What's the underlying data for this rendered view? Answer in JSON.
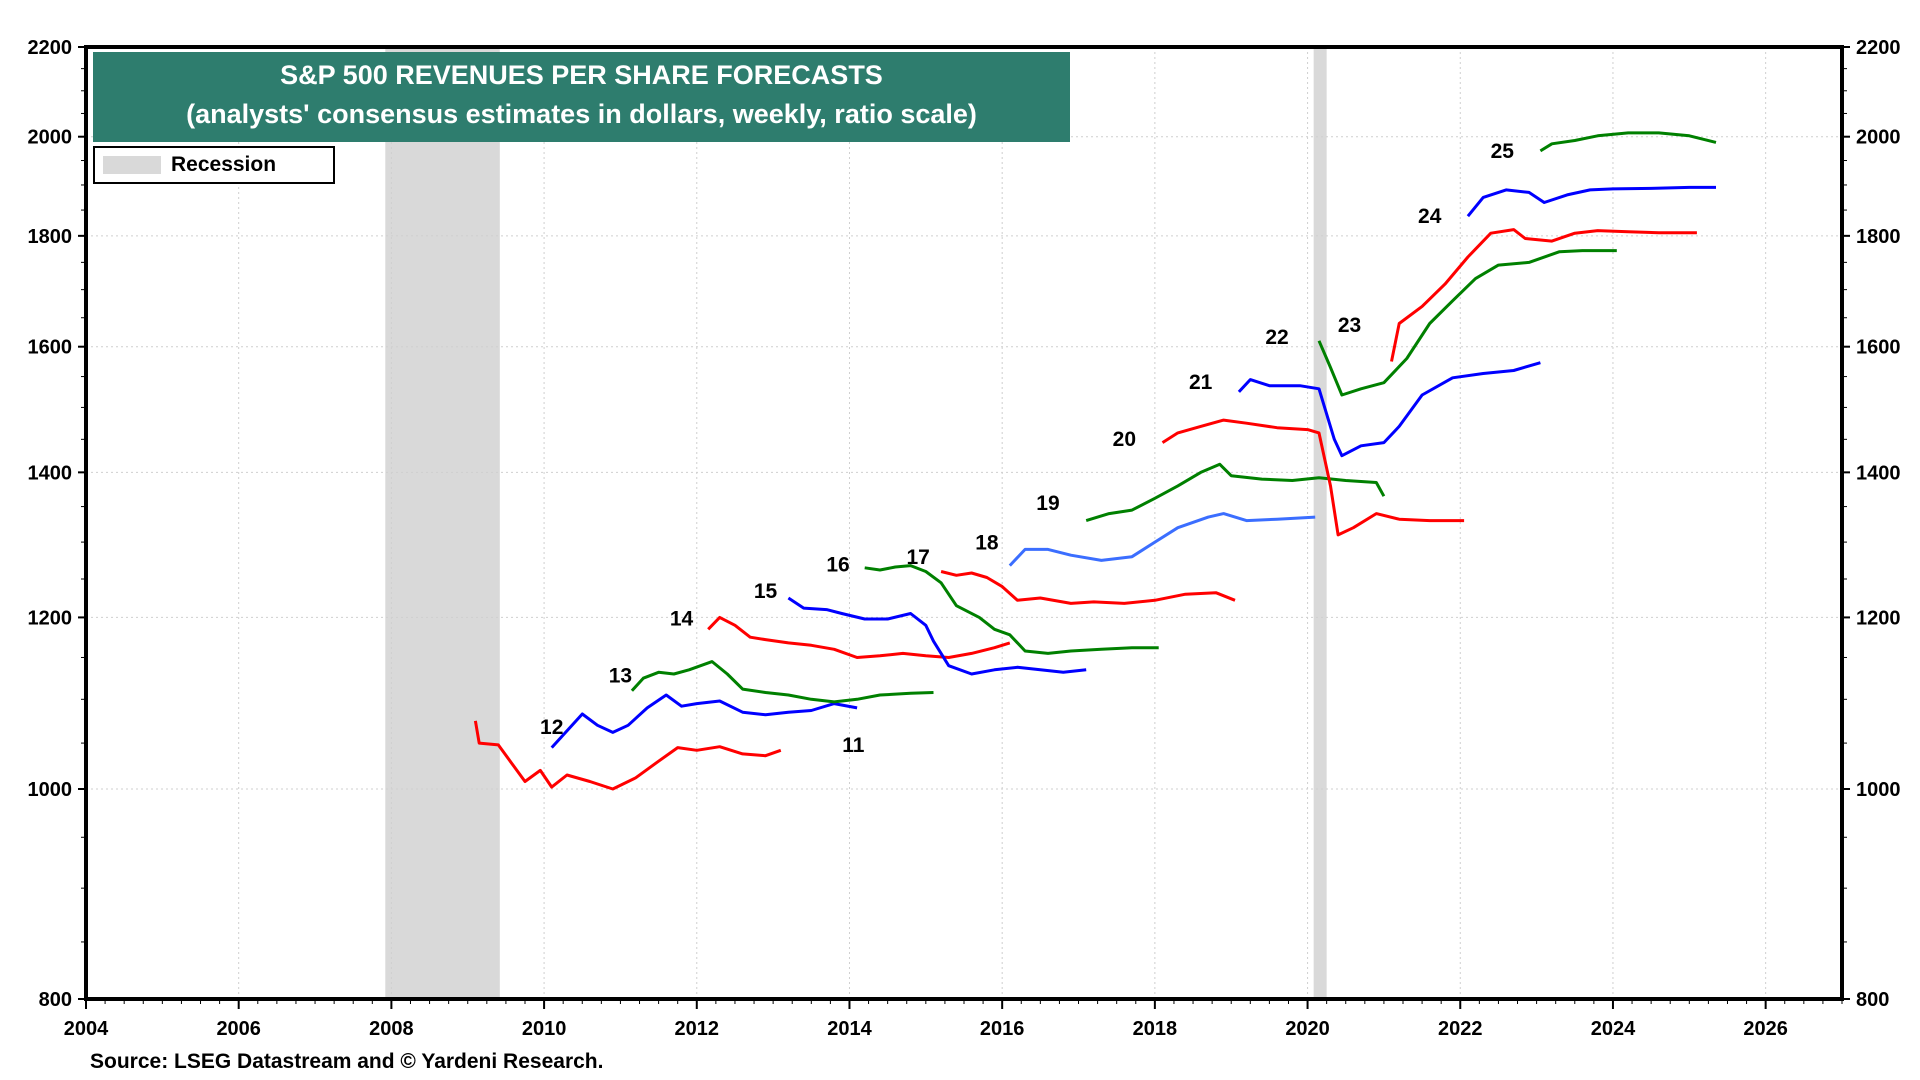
{
  "chart_data": {
    "type": "line",
    "title": "S&P 500 REVENUES PER SHARE FORECASTS",
    "subtitle": "(analysts' consensus estimates in dollars, weekly, ratio scale)",
    "xlabel": "",
    "ylabel": "",
    "yscale": "log",
    "xlim": [
      2004,
      2027
    ],
    "ylim": [
      800,
      2200
    ],
    "x_ticks": [
      "2004",
      "2006",
      "2008",
      "2010",
      "2012",
      "2014",
      "2016",
      "2018",
      "2020",
      "2022",
      "2024",
      "2026"
    ],
    "x_tick_values": [
      2004,
      2006,
      2008,
      2010,
      2012,
      2014,
      2016,
      2018,
      2020,
      2022,
      2024,
      2026
    ],
    "y_ticks": [
      "800",
      "1000",
      "1200",
      "1400",
      "1600",
      "1800",
      "2000",
      "2200"
    ],
    "y_tick_values": [
      800,
      1000,
      1200,
      1400,
      1600,
      1800,
      2000,
      2200
    ],
    "grid": true,
    "legend": {
      "position": "top-left",
      "entries": [
        {
          "name": "Recession",
          "color": "#d9d9d9"
        }
      ]
    },
    "recessions": [
      [
        2007.92,
        2009.42
      ],
      [
        2020.08,
        2020.25
      ]
    ],
    "source": "Source: LSEG Datastream and © Yardeni Research.",
    "series": [
      {
        "name": "11",
        "color": "#ff0000",
        "label_at": [
          2014.05,
          1040
        ],
        "points": [
          [
            2009.1,
            1075
          ],
          [
            2009.15,
            1050
          ],
          [
            2009.4,
            1048
          ],
          [
            2009.6,
            1025
          ],
          [
            2009.75,
            1008
          ],
          [
            2009.95,
            1020
          ],
          [
            2010.1,
            1002
          ],
          [
            2010.3,
            1015
          ],
          [
            2010.6,
            1008
          ],
          [
            2010.9,
            1000
          ],
          [
            2011.2,
            1012
          ],
          [
            2011.5,
            1030
          ],
          [
            2011.75,
            1045
          ],
          [
            2012.0,
            1042
          ],
          [
            2012.3,
            1046
          ],
          [
            2012.6,
            1038
          ],
          [
            2012.9,
            1036
          ],
          [
            2013.1,
            1042
          ]
        ]
      },
      {
        "name": "12",
        "color": "#0000ff",
        "label_at": [
          2010.1,
          1060
        ],
        "points": [
          [
            2010.1,
            1045
          ],
          [
            2010.5,
            1083
          ],
          [
            2010.7,
            1070
          ],
          [
            2010.9,
            1062
          ],
          [
            2011.1,
            1070
          ],
          [
            2011.35,
            1090
          ],
          [
            2011.6,
            1105
          ],
          [
            2011.8,
            1092
          ],
          [
            2012.0,
            1095
          ],
          [
            2012.3,
            1098
          ],
          [
            2012.6,
            1085
          ],
          [
            2012.9,
            1082
          ],
          [
            2013.2,
            1085
          ],
          [
            2013.5,
            1087
          ],
          [
            2013.8,
            1095
          ],
          [
            2014.1,
            1090
          ]
        ]
      },
      {
        "name": "13",
        "color": "#008000",
        "label_at": [
          2011.0,
          1120
        ],
        "points": [
          [
            2011.15,
            1110
          ],
          [
            2011.3,
            1125
          ],
          [
            2011.5,
            1132
          ],
          [
            2011.7,
            1130
          ],
          [
            2011.9,
            1135
          ],
          [
            2012.2,
            1145
          ],
          [
            2012.4,
            1130
          ],
          [
            2012.6,
            1112
          ],
          [
            2012.9,
            1108
          ],
          [
            2013.2,
            1105
          ],
          [
            2013.5,
            1100
          ],
          [
            2013.8,
            1097
          ],
          [
            2014.1,
            1100
          ],
          [
            2014.4,
            1105
          ],
          [
            2014.8,
            1107
          ],
          [
            2015.1,
            1108
          ]
        ]
      },
      {
        "name": "14",
        "color": "#ff0000",
        "label_at": [
          2011.8,
          1190
        ],
        "points": [
          [
            2012.15,
            1185
          ],
          [
            2012.3,
            1200
          ],
          [
            2012.5,
            1190
          ],
          [
            2012.7,
            1175
          ],
          [
            2012.9,
            1172
          ],
          [
            2013.2,
            1168
          ],
          [
            2013.5,
            1165
          ],
          [
            2013.8,
            1160
          ],
          [
            2014.1,
            1150
          ],
          [
            2014.4,
            1152
          ],
          [
            2014.7,
            1155
          ],
          [
            2015.0,
            1152
          ],
          [
            2015.3,
            1150
          ],
          [
            2015.6,
            1155
          ],
          [
            2015.9,
            1162
          ],
          [
            2016.1,
            1168
          ]
        ]
      },
      {
        "name": "15",
        "color": "#0000ff",
        "label_at": [
          2012.9,
          1225
        ],
        "points": [
          [
            2013.2,
            1225
          ],
          [
            2013.4,
            1212
          ],
          [
            2013.7,
            1210
          ],
          [
            2013.9,
            1205
          ],
          [
            2014.2,
            1198
          ],
          [
            2014.5,
            1198
          ],
          [
            2014.8,
            1205
          ],
          [
            2015.0,
            1190
          ],
          [
            2015.1,
            1170
          ],
          [
            2015.3,
            1140
          ],
          [
            2015.6,
            1130
          ],
          [
            2015.9,
            1135
          ],
          [
            2016.2,
            1138
          ],
          [
            2016.5,
            1135
          ],
          [
            2016.8,
            1132
          ],
          [
            2017.1,
            1135
          ]
        ]
      },
      {
        "name": "16",
        "color": "#008000",
        "label_at": [
          2013.85,
          1260
        ],
        "points": [
          [
            2014.2,
            1265
          ],
          [
            2014.4,
            1262
          ],
          [
            2014.6,
            1266
          ],
          [
            2014.8,
            1268
          ],
          [
            2015.0,
            1260
          ],
          [
            2015.2,
            1245
          ],
          [
            2015.4,
            1215
          ],
          [
            2015.7,
            1200
          ],
          [
            2015.9,
            1185
          ],
          [
            2016.1,
            1178
          ],
          [
            2016.3,
            1158
          ],
          [
            2016.6,
            1155
          ],
          [
            2016.9,
            1158
          ],
          [
            2017.3,
            1160
          ],
          [
            2017.7,
            1162
          ],
          [
            2018.05,
            1162
          ]
        ]
      },
      {
        "name": "17",
        "color": "#ff0000",
        "label_at": [
          2014.9,
          1270
        ],
        "points": [
          [
            2015.2,
            1260
          ],
          [
            2015.4,
            1255
          ],
          [
            2015.6,
            1258
          ],
          [
            2015.8,
            1252
          ],
          [
            2016.0,
            1240
          ],
          [
            2016.2,
            1222
          ],
          [
            2016.5,
            1225
          ],
          [
            2016.9,
            1218
          ],
          [
            2017.2,
            1220
          ],
          [
            2017.6,
            1218
          ],
          [
            2018.0,
            1222
          ],
          [
            2018.4,
            1230
          ],
          [
            2018.8,
            1232
          ],
          [
            2019.05,
            1222
          ]
        ]
      },
      {
        "name": "18",
        "color": "#3b6eff",
        "label_at": [
          2015.8,
          1290
        ],
        "points": [
          [
            2016.1,
            1268
          ],
          [
            2016.3,
            1290
          ],
          [
            2016.6,
            1290
          ],
          [
            2016.9,
            1282
          ],
          [
            2017.3,
            1275
          ],
          [
            2017.7,
            1280
          ],
          [
            2018.0,
            1300
          ],
          [
            2018.3,
            1320
          ],
          [
            2018.7,
            1335
          ],
          [
            2018.9,
            1340
          ],
          [
            2019.2,
            1330
          ],
          [
            2019.6,
            1332
          ],
          [
            2020.1,
            1335
          ]
        ]
      },
      {
        "name": "19",
        "color": "#008000",
        "label_at": [
          2016.6,
          1345
        ],
        "points": [
          [
            2017.1,
            1330
          ],
          [
            2017.4,
            1340
          ],
          [
            2017.7,
            1345
          ],
          [
            2018.0,
            1362
          ],
          [
            2018.3,
            1380
          ],
          [
            2018.6,
            1400
          ],
          [
            2018.85,
            1412
          ],
          [
            2019.0,
            1395
          ],
          [
            2019.4,
            1390
          ],
          [
            2019.8,
            1388
          ],
          [
            2020.15,
            1392
          ],
          [
            2020.5,
            1388
          ],
          [
            2020.9,
            1385
          ],
          [
            2021.0,
            1365
          ]
        ]
      },
      {
        "name": "20",
        "color": "#ff0000",
        "label_at": [
          2017.6,
          1440
        ],
        "points": [
          [
            2018.1,
            1445
          ],
          [
            2018.3,
            1460
          ],
          [
            2018.6,
            1470
          ],
          [
            2018.9,
            1480
          ],
          [
            2019.2,
            1475
          ],
          [
            2019.6,
            1468
          ],
          [
            2020.0,
            1465
          ],
          [
            2020.15,
            1460
          ],
          [
            2020.3,
            1380
          ],
          [
            2020.4,
            1310
          ],
          [
            2020.6,
            1320
          ],
          [
            2020.9,
            1340
          ],
          [
            2021.2,
            1332
          ],
          [
            2021.6,
            1330
          ],
          [
            2022.05,
            1330
          ]
        ]
      },
      {
        "name": "21",
        "color": "#0000ff",
        "label_at": [
          2018.6,
          1530
        ],
        "points": [
          [
            2019.1,
            1525
          ],
          [
            2019.25,
            1545
          ],
          [
            2019.5,
            1535
          ],
          [
            2019.9,
            1535
          ],
          [
            2020.15,
            1530
          ],
          [
            2020.35,
            1450
          ],
          [
            2020.45,
            1425
          ],
          [
            2020.7,
            1440
          ],
          [
            2021.0,
            1445
          ],
          [
            2021.2,
            1470
          ],
          [
            2021.5,
            1520
          ],
          [
            2021.9,
            1548
          ],
          [
            2022.3,
            1555
          ],
          [
            2022.7,
            1560
          ],
          [
            2023.05,
            1573
          ]
        ]
      },
      {
        "name": "22",
        "color": "#008000",
        "label_at": [
          2019.6,
          1605
        ],
        "points": [
          [
            2020.15,
            1610
          ],
          [
            2020.3,
            1565
          ],
          [
            2020.45,
            1520
          ],
          [
            2020.7,
            1530
          ],
          [
            2021.0,
            1540
          ],
          [
            2021.3,
            1580
          ],
          [
            2021.6,
            1640
          ],
          [
            2021.9,
            1680
          ],
          [
            2022.2,
            1720
          ],
          [
            2022.5,
            1745
          ],
          [
            2022.9,
            1750
          ],
          [
            2023.3,
            1770
          ],
          [
            2023.6,
            1772
          ],
          [
            2024.05,
            1772
          ]
        ]
      },
      {
        "name": "23",
        "color": "#ff0000",
        "label_at": [
          2020.55,
          1625
        ],
        "points": [
          [
            2021.1,
            1575
          ],
          [
            2021.2,
            1640
          ],
          [
            2021.5,
            1670
          ],
          [
            2021.8,
            1710
          ],
          [
            2022.1,
            1760
          ],
          [
            2022.4,
            1805
          ],
          [
            2022.7,
            1812
          ],
          [
            2022.85,
            1795
          ],
          [
            2023.2,
            1790
          ],
          [
            2023.5,
            1805
          ],
          [
            2023.8,
            1810
          ],
          [
            2024.2,
            1808
          ],
          [
            2024.6,
            1806
          ],
          [
            2025.1,
            1806
          ]
        ]
      },
      {
        "name": "24",
        "color": "#0000ff",
        "label_at": [
          2021.6,
          1825
        ],
        "points": [
          [
            2022.1,
            1838
          ],
          [
            2022.3,
            1875
          ],
          [
            2022.6,
            1890
          ],
          [
            2022.9,
            1885
          ],
          [
            2023.1,
            1865
          ],
          [
            2023.4,
            1880
          ],
          [
            2023.7,
            1890
          ],
          [
            2024.0,
            1892
          ],
          [
            2024.5,
            1893
          ],
          [
            2025.0,
            1895
          ],
          [
            2025.35,
            1895
          ]
        ]
      },
      {
        "name": "25",
        "color": "#008000",
        "label_at": [
          2022.55,
          1955
        ],
        "points": [
          [
            2023.05,
            1970
          ],
          [
            2023.2,
            1985
          ],
          [
            2023.5,
            1992
          ],
          [
            2023.8,
            2002
          ],
          [
            2024.2,
            2008
          ],
          [
            2024.6,
            2008
          ],
          [
            2025.0,
            2002
          ],
          [
            2025.35,
            1988
          ]
        ]
      }
    ]
  }
}
